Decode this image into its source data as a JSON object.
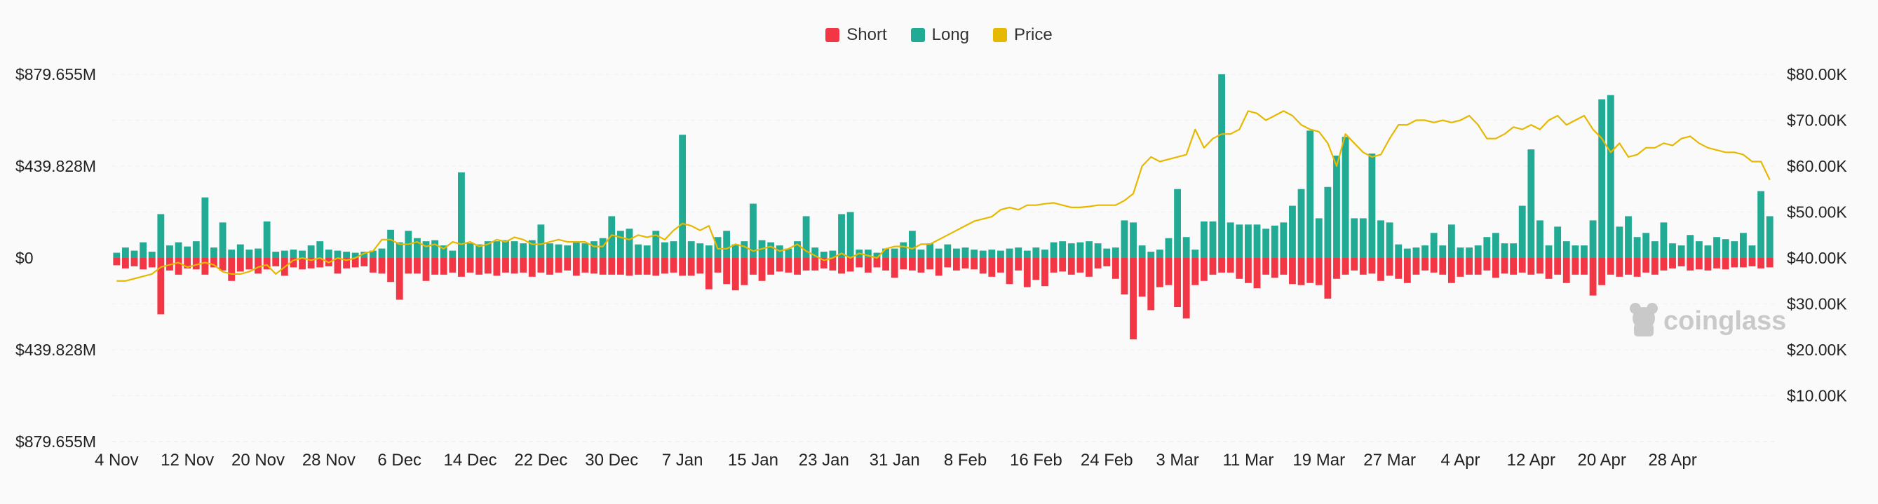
{
  "legend": [
    {
      "name": "Short",
      "color": "#f23645"
    },
    {
      "name": "Long",
      "color": "#22ab94"
    },
    {
      "name": "Price",
      "color": "#e6b800"
    }
  ],
  "watermark": "coinglass",
  "chart_data": {
    "type": "bar",
    "title": "",
    "grid": true,
    "legend_position": "top-center",
    "y_left": {
      "ticks": [
        "$879.655M",
        "$439.828M",
        "$0",
        "$439.828M",
        "$879.655M"
      ],
      "tick_values": [
        879.655,
        439.828,
        0,
        -439.828,
        -879.655
      ],
      "range": [
        -879.655,
        879.655
      ],
      "unit": "M"
    },
    "y_right": {
      "ticks": [
        "$80.00K",
        "$70.00K",
        "$60.00K",
        "$50.00K",
        "$40.00K",
        "$30.00K",
        "$20.00K",
        "$10.00K"
      ],
      "tick_values": [
        80,
        70,
        60,
        50,
        40,
        30,
        20,
        10
      ],
      "range": [
        0,
        80
      ],
      "unit": "K"
    },
    "x_ticks": [
      {
        "label": "4 Nov",
        "index": 0
      },
      {
        "label": "12 Nov",
        "index": 8
      },
      {
        "label": "20 Nov",
        "index": 16
      },
      {
        "label": "28 Nov",
        "index": 24
      },
      {
        "label": "6 Dec",
        "index": 32
      },
      {
        "label": "14 Dec",
        "index": 40
      },
      {
        "label": "22 Dec",
        "index": 48
      },
      {
        "label": "30 Dec",
        "index": 56
      },
      {
        "label": "7 Jan",
        "index": 64
      },
      {
        "label": "15 Jan",
        "index": 72
      },
      {
        "label": "23 Jan",
        "index": 80
      },
      {
        "label": "31 Jan",
        "index": 88
      },
      {
        "label": "8 Feb",
        "index": 96
      },
      {
        "label": "16 Feb",
        "index": 104
      },
      {
        "label": "24 Feb",
        "index": 112
      },
      {
        "label": "3 Mar",
        "index": 120
      },
      {
        "label": "11 Mar",
        "index": 128
      },
      {
        "label": "19 Mar",
        "index": 136
      },
      {
        "label": "27 Mar",
        "index": 144
      },
      {
        "label": "4 Apr",
        "index": 152
      },
      {
        "label": "12 Apr",
        "index": 160
      },
      {
        "label": "20 Apr",
        "index": 168
      },
      {
        "label": "28 Apr",
        "index": 176
      }
    ],
    "series": [
      {
        "name": "Long",
        "color": "#22ab94",
        "values": [
          25,
          50,
          35,
          75,
          30,
          210,
          60,
          75,
          55,
          80,
          290,
          50,
          170,
          40,
          65,
          40,
          45,
          175,
          30,
          35,
          40,
          35,
          60,
          80,
          40,
          35,
          30,
          25,
          30,
          35,
          45,
          135,
          75,
          130,
          95,
          80,
          85,
          60,
          35,
          410,
          70,
          65,
          80,
          80,
          85,
          80,
          70,
          85,
          160,
          70,
          65,
          60,
          75,
          70,
          80,
          95,
          200,
          130,
          140,
          65,
          60,
          130,
          75,
          80,
          590,
          80,
          70,
          60,
          100,
          130,
          65,
          80,
          260,
          85,
          75,
          60,
          45,
          80,
          200,
          50,
          30,
          35,
          210,
          220,
          40,
          40,
          25,
          45,
          45,
          75,
          130,
          40,
          70,
          45,
          65,
          45,
          50,
          40,
          35,
          40,
          35,
          45,
          50,
          35,
          50,
          40,
          75,
          80,
          70,
          75,
          80,
          70,
          45,
          50,
          180,
          170,
          60,
          30,
          40,
          95,
          330,
          100,
          40,
          175,
          175,
          880,
          170,
          160,
          160,
          160,
          140,
          155,
          170,
          250,
          330,
          610,
          190,
          340,
          490,
          580,
          190,
          190,
          500,
          180,
          170,
          65,
          45,
          50,
          60,
          120,
          60,
          160,
          50,
          50,
          60,
          100,
          120,
          70,
          70,
          250,
          520,
          180,
          60,
          150,
          80,
          60,
          60,
          180,
          760,
          780,
          150,
          200,
          100,
          120,
          80,
          170,
          70,
          60,
          110,
          80,
          60,
          100,
          90,
          80,
          120,
          60,
          320,
          200
        ]
      },
      {
        "name": "Short",
        "color": "#f23645",
        "values": [
          35,
          50,
          40,
          55,
          45,
          270,
          60,
          80,
          50,
          55,
          80,
          45,
          60,
          110,
          65,
          55,
          75,
          55,
          40,
          85,
          45,
          55,
          50,
          45,
          40,
          75,
          50,
          45,
          40,
          70,
          75,
          115,
          200,
          75,
          75,
          110,
          80,
          80,
          70,
          90,
          70,
          80,
          75,
          85,
          70,
          75,
          70,
          90,
          70,
          80,
          70,
          60,
          85,
          70,
          75,
          80,
          80,
          80,
          85,
          80,
          80,
          85,
          75,
          70,
          85,
          85,
          75,
          150,
          70,
          125,
          155,
          130,
          80,
          110,
          80,
          65,
          70,
          80,
          60,
          60,
          50,
          60,
          75,
          65,
          45,
          70,
          45,
          60,
          95,
          55,
          60,
          70,
          55,
          85,
          45,
          60,
          50,
          55,
          75,
          90,
          70,
          125,
          60,
          140,
          105,
          135,
          70,
          65,
          80,
          70,
          90,
          50,
          40,
          100,
          175,
          390,
          185,
          250,
          140,
          130,
          235,
          290,
          130,
          110,
          80,
          70,
          70,
          100,
          120,
          145,
          80,
          95,
          80,
          125,
          130,
          120,
          130,
          195,
          100,
          80,
          60,
          80,
          75,
          110,
          85,
          100,
          120,
          80,
          60,
          70,
          80,
          120,
          90,
          80,
          80,
          60,
          95,
          75,
          80,
          70,
          80,
          75,
          100,
          80,
          120,
          80,
          80,
          180,
          130,
          80,
          90,
          80,
          90,
          70,
          80,
          60,
          50,
          40,
          60,
          55,
          60,
          50,
          55,
          45,
          45,
          40,
          50,
          45
        ]
      },
      {
        "name": "Price",
        "color": "#e6b800",
        "values": [
          35,
          35,
          35.5,
          36,
          36.5,
          38,
          38.5,
          39,
          38,
          38.5,
          39,
          38.5,
          37,
          36.5,
          36.5,
          37,
          38,
          38.5,
          36.5,
          38,
          39.5,
          40,
          39.5,
          40,
          39,
          40,
          39.5,
          40,
          41,
          41.5,
          44,
          44,
          43,
          43,
          43.5,
          42.5,
          43,
          42,
          43.5,
          43,
          43.5,
          42.5,
          43,
          44,
          43.5,
          44.5,
          44,
          43,
          43,
          43.5,
          44,
          43.5,
          43.5,
          43.5,
          42.5,
          42.5,
          45,
          44.5,
          44,
          45,
          44.5,
          45,
          44,
          46,
          47.5,
          47,
          46,
          47,
          42,
          42,
          43,
          42.5,
          41.5,
          42,
          42.5,
          41.5,
          42,
          43,
          41.5,
          40.5,
          39.5,
          40,
          41,
          40,
          41,
          40.5,
          40,
          42,
          42.5,
          42.5,
          42,
          43,
          43,
          44,
          45,
          46,
          47,
          48,
          48.5,
          49,
          50.5,
          51,
          50.5,
          51.5,
          51.5,
          51.8,
          52,
          51.5,
          51,
          51,
          51.2,
          51.5,
          51.5,
          51.5,
          52.5,
          54,
          60,
          62,
          61,
          61.5,
          62,
          62.5,
          68,
          64,
          66,
          67,
          67,
          68,
          72,
          71.5,
          70,
          71,
          72,
          71,
          69,
          68,
          67.5,
          65,
          60,
          67,
          65,
          63,
          62,
          62.5,
          66,
          69,
          69,
          70,
          70,
          69.5,
          70,
          69.5,
          70,
          71,
          69,
          66,
          66,
          67,
          68.5,
          68,
          69,
          68,
          70,
          71,
          69,
          70,
          71,
          68,
          66,
          63,
          65,
          62,
          62.5,
          64,
          64,
          65,
          64.5,
          66,
          66.5,
          65,
          64,
          63.5,
          63,
          63,
          62.5,
          61,
          61,
          57
        ]
      }
    ]
  }
}
